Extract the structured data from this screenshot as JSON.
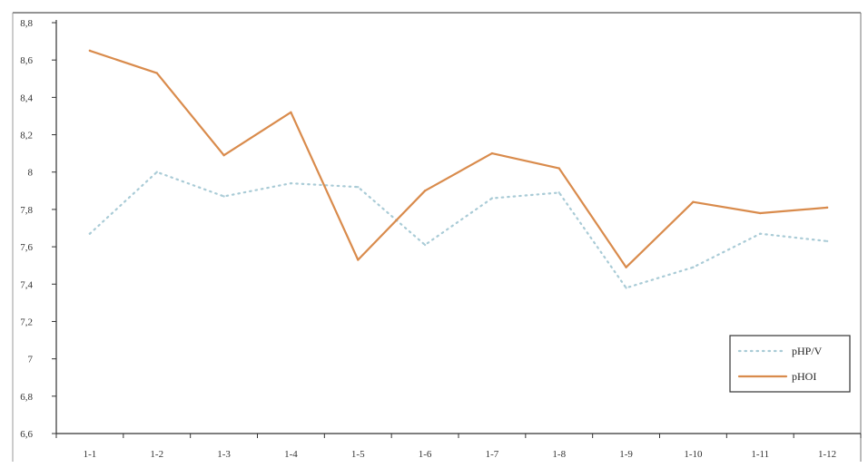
{
  "chart_data": {
    "type": "line",
    "title": "",
    "xlabel": "",
    "ylabel": "",
    "categories": [
      "1-1",
      "1-2",
      "1-3",
      "1-4",
      "1-5",
      "1-6",
      "1-7",
      "1-8",
      "1-9",
      "1-10",
      "1-11",
      "1-12"
    ],
    "y_ticks": [
      "6,6",
      "6,8",
      "7",
      "7,2",
      "7,4",
      "7,6",
      "7,8",
      "8",
      "8,2",
      "8,4",
      "8,6",
      "8,8"
    ],
    "ylim": [
      6.6,
      8.8
    ],
    "grid": false,
    "legend_position": "bottom-right",
    "series": [
      {
        "name": "pHP/V",
        "color": "#a9cbd6",
        "style": "dotted",
        "values": [
          7.67,
          8.0,
          7.87,
          7.94,
          7.92,
          7.61,
          7.86,
          7.89,
          7.38,
          7.49,
          7.67,
          7.63
        ]
      },
      {
        "name": "pHOI",
        "color": "#d98b4c",
        "style": "solid",
        "values": [
          8.65,
          8.53,
          8.09,
          8.32,
          7.53,
          7.9,
          8.1,
          8.02,
          7.49,
          7.84,
          7.78,
          7.81
        ]
      }
    ]
  }
}
